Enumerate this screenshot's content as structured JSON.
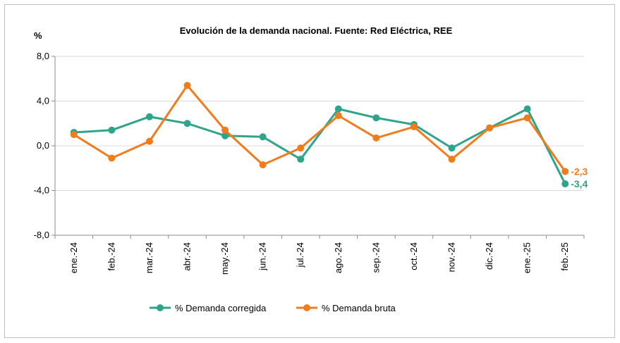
{
  "chart_data": {
    "type": "line",
    "title": "Evolución de la demanda nacional. Fuente: Red Eléctrica, REE",
    "ylabel": "%",
    "xlabel": "",
    "ylim": [
      -8,
      8
    ],
    "yticks": [
      "8,0",
      "4,0",
      "0,0",
      "-4,0",
      "-8,0"
    ],
    "ytick_values": [
      8,
      4,
      0,
      -4,
      -8
    ],
    "grid": true,
    "legend_position": "bottom",
    "categories": [
      "ene.-24",
      "feb.-24",
      "mar.-24",
      "abr.-24",
      "may.-24",
      "jun.-24",
      "jul.-24",
      "ago.-24",
      "sep.-24",
      "oct.-24",
      "nov.-24",
      "dic.-24",
      "ene.-25",
      "feb.-25"
    ],
    "series": [
      {
        "name": "% Demanda corregida",
        "color": "#2ea58a",
        "values": [
          1.2,
          1.4,
          2.6,
          2.0,
          0.9,
          0.8,
          -1.2,
          3.3,
          2.5,
          1.9,
          -0.2,
          1.6,
          3.3,
          -3.4
        ],
        "end_label": "-3,4"
      },
      {
        "name": "% Demanda bruta",
        "color": "#f07c1e",
        "values": [
          1.0,
          -1.1,
          0.4,
          5.4,
          1.4,
          -1.7,
          -0.2,
          2.7,
          0.7,
          1.7,
          -1.2,
          1.6,
          2.5,
          -2.3
        ],
        "end_label": "-2,3"
      }
    ]
  }
}
